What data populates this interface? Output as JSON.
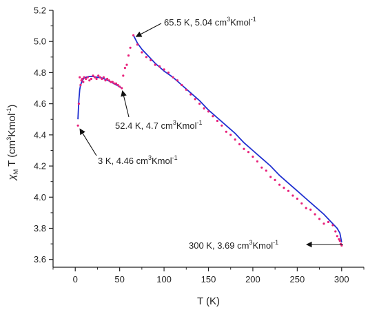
{
  "chart_data": {
    "type": "scatter",
    "title": "",
    "xlabel": "T (K)",
    "ylabel_parts": {
      "symbol": "χ",
      "subscript": "M",
      "rest": "T (cm",
      "sup": "3",
      "tail": "Kmol",
      "tail_sup": "-1",
      "close": ")"
    },
    "xlim": [
      -25,
      325
    ],
    "ylim": [
      3.55,
      5.2
    ],
    "x_ticks": [
      0,
      50,
      100,
      150,
      200,
      250,
      300
    ],
    "y_ticks": [
      3.6,
      3.8,
      4.0,
      4.2,
      4.4,
      4.6,
      4.8,
      5.0,
      5.2
    ],
    "x_tick_labels": [
      "0",
      "50",
      "100",
      "150",
      "200",
      "250",
      "300"
    ],
    "y_tick_labels": [
      "3.6",
      "3.8",
      "4.0",
      "4.2",
      "4.4",
      "4.6",
      "4.8",
      "5.0",
      "5.2"
    ],
    "grid": false,
    "colors": {
      "points": "#e8207a",
      "fit": "#1f2fd0",
      "axis": "#222222"
    },
    "series": [
      {
        "kind": "points",
        "x": [
          3,
          4,
          5,
          6,
          7,
          8,
          9,
          10,
          12,
          14,
          16,
          18,
          20,
          22,
          24,
          26,
          28,
          30,
          32,
          34,
          36,
          38,
          40,
          42,
          44,
          46,
          48,
          50,
          52.4,
          54,
          56,
          58,
          60,
          62,
          65.5,
          70,
          75,
          80,
          85,
          90,
          95,
          100,
          105,
          110,
          115,
          120,
          125,
          130,
          135,
          140,
          145,
          150,
          155,
          160,
          165,
          170,
          175,
          180,
          185,
          190,
          195,
          200,
          205,
          210,
          215,
          220,
          225,
          230,
          235,
          240,
          245,
          250,
          255,
          260,
          265,
          270,
          275,
          280,
          285,
          290,
          293,
          295,
          297,
          298,
          299,
          300
        ],
        "y": [
          4.46,
          4.6,
          4.77,
          4.72,
          4.75,
          4.76,
          4.74,
          4.77,
          4.76,
          4.77,
          4.75,
          4.76,
          4.78,
          4.77,
          4.76,
          4.78,
          4.77,
          4.76,
          4.77,
          4.75,
          4.76,
          4.75,
          4.74,
          4.74,
          4.73,
          4.73,
          4.72,
          4.71,
          4.7,
          4.78,
          4.83,
          4.85,
          4.91,
          4.96,
          5.04,
          4.98,
          4.93,
          4.9,
          4.88,
          4.85,
          4.84,
          4.82,
          4.8,
          4.77,
          4.75,
          4.72,
          4.69,
          4.66,
          4.63,
          4.6,
          4.57,
          4.55,
          4.52,
          4.49,
          4.46,
          4.42,
          4.4,
          4.37,
          4.34,
          4.31,
          4.29,
          4.26,
          4.23,
          4.19,
          4.17,
          4.13,
          4.11,
          4.08,
          4.06,
          4.04,
          4.01,
          3.99,
          3.96,
          3.93,
          3.92,
          3.89,
          3.86,
          3.83,
          3.84,
          3.82,
          3.78,
          3.75,
          3.73,
          3.72,
          3.7,
          3.69
        ]
      },
      {
        "kind": "fit",
        "segments": [
          {
            "x": [
              3,
              4,
              5,
              6,
              8,
              10,
              12,
              15,
              20,
              25,
              30,
              35,
              40,
              45,
              50,
              52.4
            ],
            "y": [
              4.5,
              4.62,
              4.69,
              4.72,
              4.75,
              4.765,
              4.77,
              4.775,
              4.775,
              4.77,
              4.765,
              4.755,
              4.74,
              4.725,
              4.71,
              4.7
            ]
          },
          {
            "x": [
              65.5,
              70,
              75,
              80,
              90,
              100,
              110,
              120,
              130,
              140,
              150,
              160,
              170,
              180,
              190,
              200,
              210,
              220,
              230,
              240,
              250,
              260,
              270,
              280,
              290,
              295,
              298,
              300
            ],
            "y": [
              5.04,
              4.99,
              4.95,
              4.92,
              4.86,
              4.81,
              4.77,
              4.72,
              4.67,
              4.62,
              4.56,
              4.51,
              4.46,
              4.41,
              4.35,
              4.3,
              4.25,
              4.2,
              4.14,
              4.09,
              4.04,
              3.99,
              3.94,
              3.89,
              3.83,
              3.8,
              3.77,
              3.71
            ]
          }
        ]
      }
    ],
    "annotations": [
      {
        "text": "65.5 K, 5.04  cm",
        "sup": "3",
        "text2": "Kmol",
        "sup2": "-1",
        "point": [
          65.5,
          5.04
        ]
      },
      {
        "text": "52.4 K, 4.7  cm",
        "sup": "3",
        "text2": "Kmol",
        "sup2": "-1",
        "point": [
          52.4,
          4.7
        ]
      },
      {
        "text": "3 K, 4.46  cm",
        "sup": "3",
        "text2": "Kmol",
        "sup2": "-1",
        "point": [
          3,
          4.46
        ]
      },
      {
        "text": "300 K, 3.69 cm",
        "sup": "3",
        "text2": "Kmol",
        "sup2": "-1",
        "point": [
          300,
          3.69
        ]
      }
    ]
  }
}
